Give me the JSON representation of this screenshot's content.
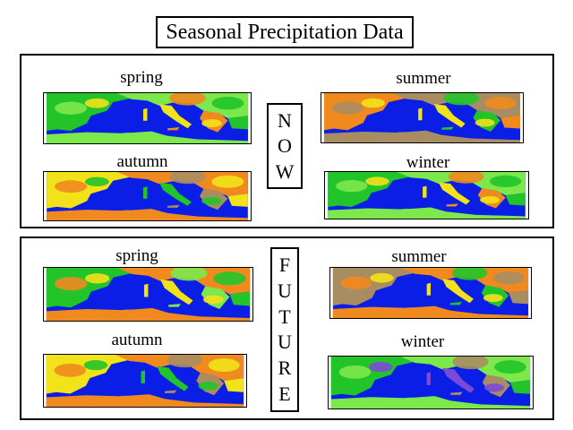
{
  "title": "Seasonal Precipitation Data",
  "colors": {
    "sea": "#0a1ee6",
    "green": "#22c42a",
    "light_green": "#7de84b",
    "yellow": "#f2e21a",
    "orange": "#f08a1f",
    "tan": "#a88d62",
    "purple": "#7b4bd6"
  },
  "now": {
    "vertical_word": [
      "N",
      "O",
      "W"
    ],
    "maps": [
      {
        "season": "spring",
        "palette": [
          "#22c42a",
          "#7de84b",
          "#f2e21a",
          "#f08a1f"
        ]
      },
      {
        "season": "summer",
        "palette": [
          "#f08a1f",
          "#a88d62",
          "#f2e21a",
          "#22c42a"
        ]
      },
      {
        "season": "autumn",
        "palette": [
          "#f2e21a",
          "#f08a1f",
          "#22c42a",
          "#a88d62"
        ]
      },
      {
        "season": "winter",
        "palette": [
          "#22c42a",
          "#7de84b",
          "#f2e21a",
          "#f08a1f"
        ]
      }
    ]
  },
  "future": {
    "vertical_word": [
      "F",
      "U",
      "T",
      "U",
      "R",
      "E"
    ],
    "maps": [
      {
        "season": "spring",
        "palette": [
          "#22c42a",
          "#f08a1f",
          "#f2e21a",
          "#7de84b"
        ]
      },
      {
        "season": "summer",
        "palette": [
          "#a88d62",
          "#f08a1f",
          "#f2e21a",
          "#22c42a"
        ]
      },
      {
        "season": "autumn",
        "palette": [
          "#f2e21a",
          "#f08a1f",
          "#22c42a",
          "#a88d62"
        ]
      },
      {
        "season": "winter",
        "palette": [
          "#22c42a",
          "#7de84b",
          "#7b4bd6",
          "#a88d62"
        ]
      }
    ]
  }
}
